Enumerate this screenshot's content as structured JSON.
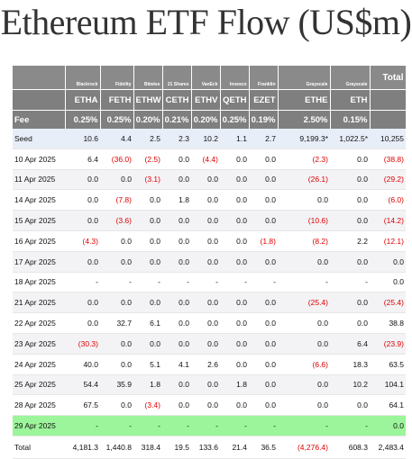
{
  "title": "Ethereum ETF Flow (US$m)",
  "header": {
    "sponsors": [
      "Blackrock",
      "Fidelity",
      "Bitwise",
      "21 Shares",
      "VanEck",
      "Invesco",
      "Franklin",
      "Grayscale",
      "Grayscale"
    ],
    "total_label": "Total",
    "tickers": [
      "ETHA",
      "FETH",
      "ETHW",
      "CETH",
      "ETHV",
      "QETH",
      "EZET",
      "ETHE",
      "ETH"
    ],
    "fee_label": "Fee",
    "fees": [
      "0.25%",
      "0.25%",
      "0.20%",
      "0.21%",
      "0.20%",
      "0.25%",
      "0.19%",
      "2.50%",
      "0.15%"
    ]
  },
  "rows": [
    {
      "label": "Seed",
      "style": "seed",
      "cells": [
        "10.6",
        "4.4",
        "2.5",
        "2.3",
        "10.2",
        "1.1",
        "2.7",
        "9,199.3*",
        "1,022.5*"
      ],
      "total": "10,255"
    },
    {
      "label": "10 Apr 2025",
      "style": "alt",
      "cells": [
        "6.4",
        "(36.0)",
        "(2.5)",
        "0.0",
        "(4.4)",
        "0.0",
        "0.0",
        "(2.3)",
        "0.0"
      ],
      "total": "(38.8)"
    },
    {
      "label": "11 Apr 2025",
      "style": "shade",
      "cells": [
        "0.0",
        "0.0",
        "(3.1)",
        "0.0",
        "0.0",
        "0.0",
        "0.0",
        "(26.1)",
        "0.0"
      ],
      "total": "(29.2)"
    },
    {
      "label": "14 Apr 2025",
      "style": "alt",
      "cells": [
        "0.0",
        "(7.8)",
        "0.0",
        "1.8",
        "0.0",
        "0.0",
        "0.0",
        "0.0",
        "0.0"
      ],
      "total": "(6.0)"
    },
    {
      "label": "15 Apr 2025",
      "style": "shade",
      "cells": [
        "0.0",
        "(3.6)",
        "0.0",
        "0.0",
        "0.0",
        "0.0",
        "0.0",
        "(10.6)",
        "0.0"
      ],
      "total": "(14.2)"
    },
    {
      "label": "16 Apr 2025",
      "style": "alt",
      "cells": [
        "(4.3)",
        "0.0",
        "0.0",
        "0.0",
        "0.0",
        "0.0",
        "(1.8)",
        "(8.2)",
        "2.2"
      ],
      "total": "(12.1)"
    },
    {
      "label": "17 Apr 2025",
      "style": "shade",
      "cells": [
        "0.0",
        "0.0",
        "0.0",
        "0.0",
        "0.0",
        "0.0",
        "0.0",
        "0.0",
        "0.0"
      ],
      "total": "0.0"
    },
    {
      "label": "18 Apr 2025",
      "style": "alt",
      "cells": [
        "-",
        "-",
        "-",
        "-",
        "-",
        "-",
        "-",
        "-",
        "-"
      ],
      "total": "0.0"
    },
    {
      "label": "21 Apr 2025",
      "style": "shade",
      "cells": [
        "0.0",
        "0.0",
        "0.0",
        "0.0",
        "0.0",
        "0.0",
        "0.0",
        "(25.4)",
        "0.0"
      ],
      "total": "(25.4)"
    },
    {
      "label": "22 Apr 2025",
      "style": "alt",
      "cells": [
        "0.0",
        "32.7",
        "6.1",
        "0.0",
        "0.0",
        "0.0",
        "0.0",
        "0.0",
        "0.0"
      ],
      "total": "38.8"
    },
    {
      "label": "23 Apr 2025",
      "style": "shade",
      "cells": [
        "(30.3)",
        "0.0",
        "0.0",
        "0.0",
        "0.0",
        "0.0",
        "0.0",
        "0.0",
        "6.4"
      ],
      "total": "(23.9)"
    },
    {
      "label": "24 Apr 2025",
      "style": "alt",
      "cells": [
        "40.0",
        "0.0",
        "5.1",
        "4.1",
        "2.6",
        "0.0",
        "0.0",
        "(6.6)",
        "18.3"
      ],
      "total": "63.5"
    },
    {
      "label": "25 Apr 2025",
      "style": "shade",
      "cells": [
        "54.4",
        "35.9",
        "1.8",
        "0.0",
        "0.0",
        "1.8",
        "0.0",
        "0.0",
        "10.2"
      ],
      "total": "104.1"
    },
    {
      "label": "28 Apr 2025",
      "style": "alt",
      "cells": [
        "67.5",
        "0.0",
        "(3.4)",
        "0.0",
        "0.0",
        "0.0",
        "0.0",
        "0.0",
        "0.0"
      ],
      "total": "64.1"
    },
    {
      "label": "29 Apr 2025",
      "style": "holiday",
      "cells": [
        "-",
        "-",
        "-",
        "-",
        "-",
        "-",
        "-",
        "-",
        "-"
      ],
      "total": "0.0"
    },
    {
      "label": "Total",
      "style": "total",
      "cells": [
        "4,181.3",
        "1,440.8",
        "318.4",
        "19.5",
        "133.6",
        "21.4",
        "36.5",
        "(4,276.4)",
        "608.3"
      ],
      "total": "2,483.4"
    }
  ],
  "colors": {
    "header_bg": "#7f7f7f",
    "negative": "#e00000",
    "seed_bg": "#e8eef8",
    "holiday_bg": "#9cf59a"
  }
}
